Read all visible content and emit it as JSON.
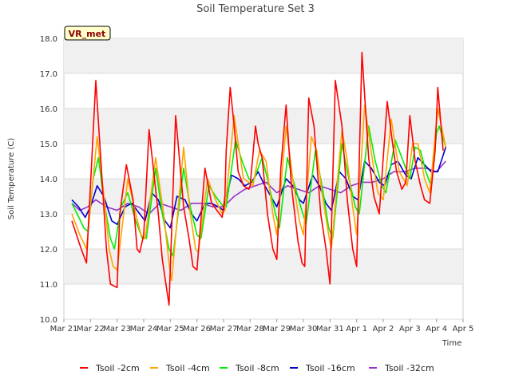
{
  "chart_data": {
    "type": "line",
    "title": "Soil Temperature Set 3",
    "xlabel": "Time",
    "ylabel": "Soil Temperature (C)",
    "site_label": "VR_met",
    "ylim": [
      10.0,
      18.0
    ],
    "xlim": [
      0,
      15
    ],
    "yticks": [
      "10.0",
      "11.0",
      "12.0",
      "13.0",
      "14.0",
      "15.0",
      "16.0",
      "17.0",
      "18.0"
    ],
    "xticks": [
      "Mar 21",
      "Mar 22",
      "Mar 23",
      "Mar 24",
      "Mar 25",
      "Mar 26",
      "Mar 27",
      "Mar 28",
      "Mar 29",
      "Mar 30",
      "Mar 31",
      "Apr 1",
      "Apr 2",
      "Apr 3",
      "Apr 4",
      "Apr 5"
    ],
    "grid": true,
    "legend_position": "bottom",
    "x_units": "days after Mar 21",
    "series": [
      {
        "name": "Tsoil -2cm",
        "color": "#ff0000",
        "x": [
          0.3,
          0.65,
          0.85,
          1.0,
          1.2,
          1.6,
          1.75,
          2.0,
          2.1,
          2.35,
          2.6,
          2.75,
          2.85,
          3.0,
          3.2,
          3.55,
          3.7,
          3.95,
          4.2,
          4.5,
          4.7,
          4.85,
          5.0,
          5.3,
          5.55,
          5.95,
          6.05,
          6.1,
          6.25,
          6.4,
          6.55,
          6.75,
          6.95,
          7.0,
          7.2,
          7.3,
          7.45,
          7.65,
          7.85,
          8.0,
          8.15,
          8.35,
          8.55,
          8.8,
          8.95,
          9.05,
          9.2,
          9.4,
          9.65,
          9.85,
          10.0,
          10.2,
          10.45,
          10.65,
          10.85,
          11.0,
          11.2,
          11.45,
          11.65,
          11.85,
          12.0,
          12.15,
          12.35,
          12.5,
          12.7,
          12.85,
          13.0,
          13.2,
          13.4,
          13.55,
          13.75,
          13.95,
          14.05,
          14.25
        ],
        "y": [
          12.8,
          12.0,
          11.6,
          13.8,
          16.8,
          12.0,
          11.0,
          10.9,
          13.0,
          14.4,
          13.4,
          12.0,
          11.9,
          12.4,
          15.4,
          13.0,
          11.7,
          10.4,
          15.8,
          13.2,
          12.3,
          11.5,
          11.4,
          14.3,
          13.3,
          12.9,
          13.5,
          14.8,
          16.6,
          15.5,
          14.2,
          13.8,
          13.7,
          13.8,
          15.5,
          15.0,
          14.6,
          13.0,
          12.0,
          11.7,
          14.3,
          16.1,
          13.8,
          12.2,
          11.6,
          11.5,
          16.3,
          15.5,
          13.0,
          12.0,
          11.0,
          16.8,
          15.5,
          13.4,
          12.0,
          11.5,
          17.6,
          14.6,
          13.5,
          13.0,
          14.6,
          16.2,
          15.0,
          14.2,
          13.7,
          13.9,
          15.8,
          14.5,
          13.8,
          13.4,
          13.3,
          14.8,
          16.6,
          14.8
        ]
      },
      {
        "name": "Tsoil -4cm",
        "color": "#ffa500",
        "x": [
          0.3,
          0.6,
          0.85,
          1.0,
          1.25,
          1.55,
          1.7,
          1.85,
          2.0,
          2.4,
          2.7,
          2.9,
          3.05,
          3.45,
          3.75,
          3.95,
          4.05,
          4.5,
          4.75,
          4.95,
          5.05,
          5.4,
          5.7,
          5.95,
          6.05,
          6.4,
          6.55,
          6.75,
          6.95,
          7.1,
          7.35,
          7.6,
          7.85,
          8.0,
          8.35,
          8.6,
          8.85,
          9.0,
          9.3,
          9.5,
          9.7,
          9.95,
          10.05,
          10.45,
          10.65,
          10.85,
          11.0,
          11.3,
          11.6,
          11.8,
          12.0,
          12.3,
          12.6,
          12.9,
          13.1,
          13.3,
          13.55,
          13.75,
          14.05,
          14.35
        ],
        "y": [
          13.0,
          12.4,
          12.0,
          13.2,
          15.2,
          13.2,
          12.0,
          11.5,
          11.4,
          14.0,
          13.0,
          12.4,
          12.3,
          14.6,
          13.0,
          11.6,
          11.1,
          14.9,
          13.0,
          12.0,
          11.9,
          14.0,
          13.4,
          13.0,
          13.1,
          15.8,
          15.0,
          14.0,
          13.9,
          13.8,
          14.8,
          14.5,
          13.0,
          12.4,
          15.5,
          14.0,
          12.8,
          12.4,
          15.2,
          14.8,
          13.6,
          12.4,
          12.0,
          15.4,
          14.5,
          13.2,
          12.4,
          16.1,
          14.5,
          13.6,
          13.4,
          15.7,
          14.2,
          13.8,
          15.0,
          15.0,
          14.0,
          13.6,
          16.0,
          14.9
        ]
      },
      {
        "name": "Tsoil -8cm",
        "color": "#00ee00",
        "x": [
          0.3,
          0.5,
          0.75,
          0.9,
          1.1,
          1.3,
          1.5,
          1.75,
          1.9,
          2.15,
          2.4,
          2.7,
          2.95,
          3.1,
          3.45,
          3.7,
          3.95,
          4.1,
          4.5,
          4.75,
          5.0,
          5.15,
          5.45,
          5.7,
          6.0,
          6.1,
          6.45,
          6.7,
          6.95,
          7.1,
          7.45,
          7.65,
          7.95,
          8.1,
          8.4,
          8.6,
          8.9,
          9.1,
          9.45,
          9.7,
          9.95,
          10.1,
          10.45,
          10.65,
          10.95,
          11.1,
          11.45,
          11.7,
          11.95,
          12.1,
          12.45,
          12.7,
          13.0,
          13.2,
          13.4,
          13.6,
          13.8,
          14.0,
          14.1,
          14.35
        ],
        "y": [
          13.3,
          13.0,
          12.6,
          12.5,
          14.0,
          14.6,
          13.4,
          12.3,
          12.0,
          13.2,
          13.6,
          12.8,
          12.3,
          12.3,
          14.3,
          13.0,
          12.0,
          11.8,
          14.3,
          13.2,
          12.4,
          12.3,
          13.8,
          13.5,
          13.2,
          13.2,
          15.1,
          14.5,
          14.0,
          13.9,
          14.6,
          14.0,
          13.0,
          12.6,
          14.6,
          14.0,
          13.2,
          12.7,
          14.8,
          13.8,
          12.6,
          12.3,
          15.0,
          14.2,
          13.2,
          13.0,
          15.5,
          14.5,
          13.8,
          13.6,
          15.1,
          14.6,
          14.0,
          14.9,
          14.8,
          14.2,
          13.8,
          15.3,
          15.5,
          14.9
        ]
      },
      {
        "name": "Tsoil -16cm",
        "color": "#0000cc",
        "x": [
          0.3,
          0.55,
          0.8,
          1.0,
          1.25,
          1.5,
          1.8,
          2.0,
          2.3,
          2.55,
          2.85,
          3.05,
          3.3,
          3.55,
          3.8,
          4.0,
          4.25,
          4.55,
          4.8,
          5.0,
          5.3,
          5.55,
          5.8,
          6.0,
          6.3,
          6.55,
          6.8,
          7.05,
          7.3,
          7.55,
          7.85,
          8.0,
          8.35,
          8.6,
          8.85,
          9.0,
          9.35,
          9.6,
          9.85,
          10.05,
          10.35,
          10.6,
          10.85,
          11.05,
          11.3,
          11.55,
          11.85,
          12.05,
          12.3,
          12.55,
          12.85,
          13.05,
          13.3,
          13.55,
          13.8,
          14.05,
          14.35
        ],
        "y": [
          13.4,
          13.2,
          12.9,
          13.2,
          13.8,
          13.5,
          12.8,
          12.7,
          13.2,
          13.3,
          13.0,
          12.8,
          13.6,
          13.4,
          12.8,
          12.6,
          13.5,
          13.4,
          13.0,
          12.8,
          13.3,
          13.3,
          13.2,
          13.1,
          14.1,
          14.0,
          13.8,
          13.9,
          14.2,
          13.8,
          13.4,
          13.2,
          14.0,
          13.8,
          13.4,
          13.3,
          14.1,
          13.8,
          13.3,
          13.1,
          14.2,
          14.0,
          13.5,
          13.4,
          14.5,
          14.3,
          13.9,
          13.8,
          14.4,
          14.5,
          14.1,
          14.0,
          14.6,
          14.4,
          14.2,
          14.2,
          14.9
        ]
      },
      {
        "name": "Tsoil -32cm",
        "color": "#9932cc",
        "x": [
          0.3,
          0.6,
          0.9,
          1.2,
          1.6,
          2.0,
          2.4,
          2.8,
          3.2,
          3.6,
          4.0,
          4.4,
          4.8,
          5.2,
          5.6,
          6.0,
          6.4,
          6.8,
          7.2,
          7.6,
          8.0,
          8.4,
          8.8,
          9.2,
          9.6,
          10.0,
          10.4,
          10.8,
          11.2,
          11.6,
          12.0,
          12.4,
          12.8,
          13.2,
          13.6,
          14.0,
          14.35
        ],
        "y": [
          13.3,
          13.1,
          13.2,
          13.4,
          13.2,
          13.1,
          13.3,
          13.2,
          13.0,
          13.3,
          13.2,
          13.1,
          13.3,
          13.3,
          13.2,
          13.2,
          13.5,
          13.7,
          13.8,
          13.9,
          13.6,
          13.8,
          13.7,
          13.6,
          13.8,
          13.7,
          13.6,
          13.8,
          13.9,
          13.9,
          14.0,
          14.2,
          14.2,
          14.3,
          14.3,
          14.2,
          14.5
        ]
      }
    ]
  }
}
